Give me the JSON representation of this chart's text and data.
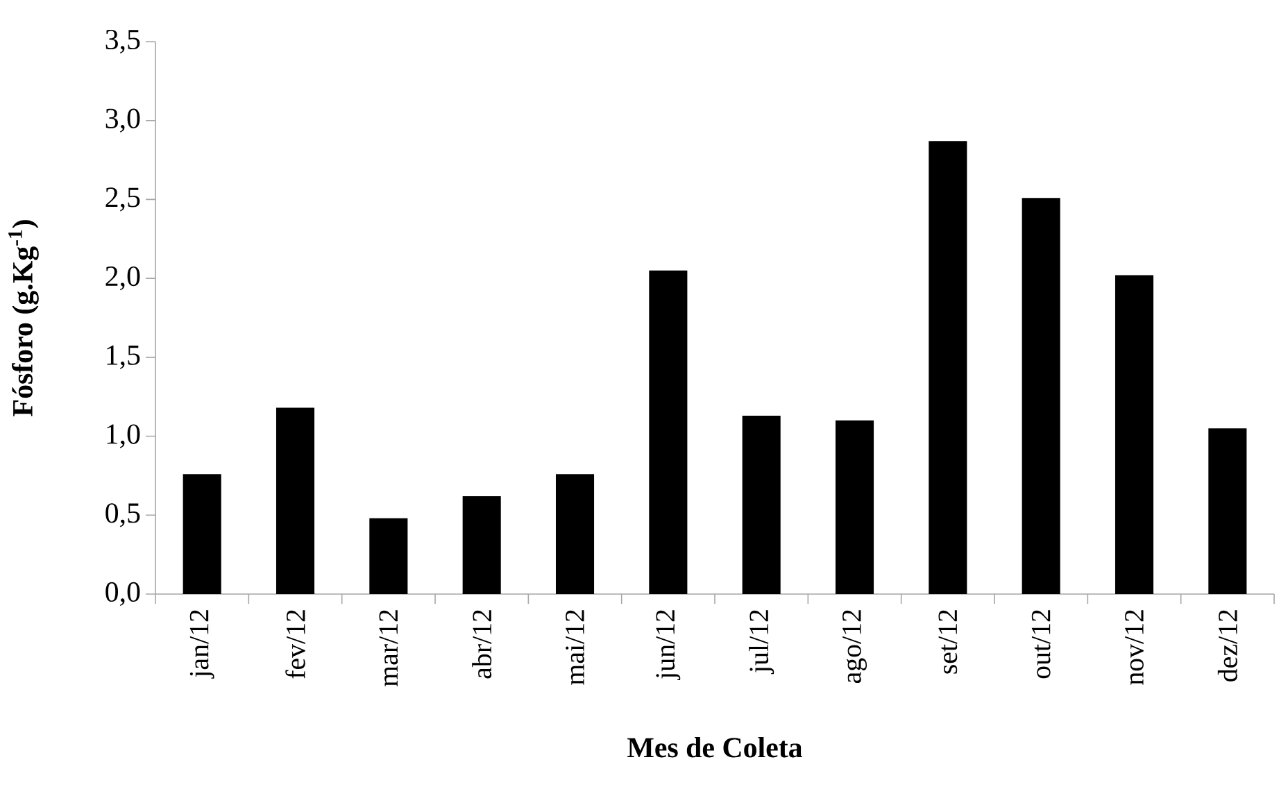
{
  "chart_data": {
    "type": "bar",
    "ylabel": "Fósforo  (g.Kg$^{-1}$)",
    "xlabel": "Mes de Coleta",
    "categories": [
      "jan/12",
      "fev/12",
      "mar/12",
      "abr/12",
      "mai/12",
      "jun/12",
      "jul/12",
      "ago/12",
      "set/12",
      "out/12",
      "nov/12",
      "dez/12"
    ],
    "values": [
      0.76,
      1.18,
      0.48,
      0.62,
      0.76,
      2.05,
      1.13,
      1.1,
      2.87,
      2.51,
      2.02,
      1.05
    ],
    "color": "#000000",
    "ylim": [
      0,
      3.5
    ],
    "yticks": [
      {
        "value": 0,
        "label": "0,0"
      },
      {
        "value": 0.5,
        "label": "0,5"
      },
      {
        "value": 1,
        "label": "1,0"
      },
      {
        "value": 1.5,
        "label": "1,5"
      },
      {
        "value": 2,
        "label": "2,0"
      },
      {
        "value": 2.5,
        "label": "2,5"
      },
      {
        "value": 3,
        "label": "3,0"
      },
      {
        "value": 3.5,
        "label": "3,5"
      }
    ]
  }
}
